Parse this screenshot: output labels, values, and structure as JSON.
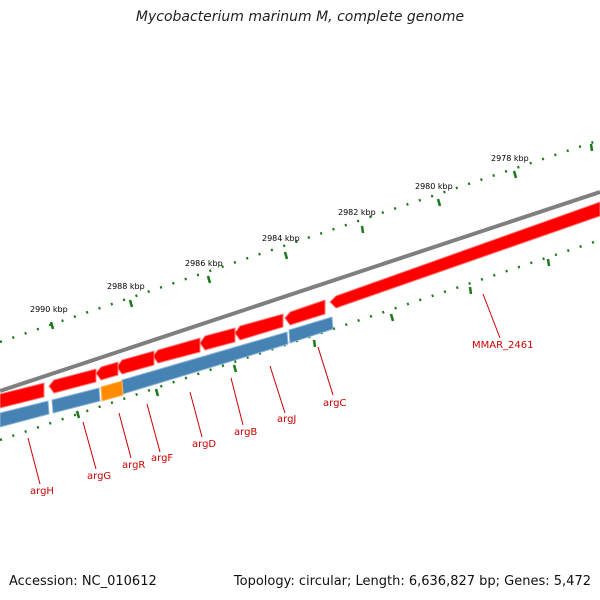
{
  "title": "Mycobacterium marinum M, complete genome",
  "footer": {
    "accession": "Accession: NC_010612",
    "summary": "Topology: circular; Length: 6,636,827 bp; Genes: 5,472"
  },
  "colors": {
    "backbone": "#7f7f7f",
    "cds": "#ff0000",
    "gene": "#4682b4",
    "gene_highlight": "#ff8c00",
    "ticks": "#1a7a1a",
    "labels": "#cc0000"
  },
  "scale_labels": [
    "2978 kbp",
    "2980 kbp",
    "2982 kbp",
    "2984 kbp",
    "2986 kbp",
    "2988 kbp",
    "2990 kbp"
  ],
  "gene_labels": [
    "MMAR_2461",
    "argC",
    "argJ",
    "argB",
    "argD",
    "argF",
    "argR",
    "argG",
    "argH"
  ]
}
